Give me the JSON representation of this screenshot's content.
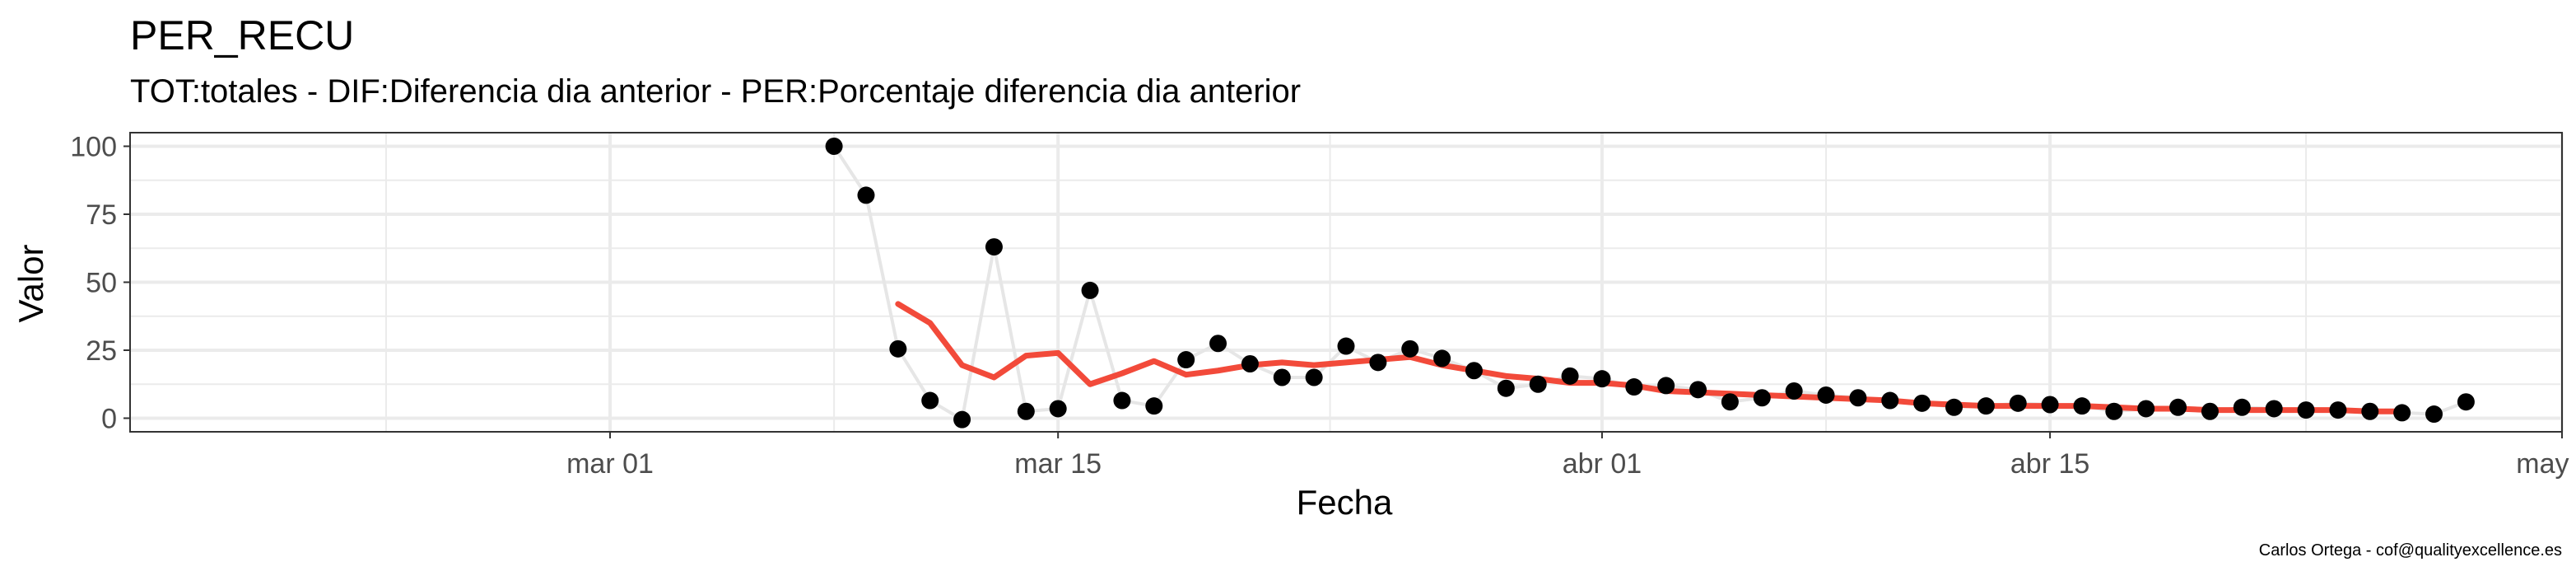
{
  "chart_data": {
    "type": "line",
    "title": "PER_RECU",
    "subtitle": "TOT:totales - DIF:Diferencia dia anterior - PER:Porcentaje diferencia dia anterior",
    "xlabel": "Fecha",
    "ylabel": "Valor",
    "caption": "Carlos Ortega - cof@qualityexcellence.es",
    "x_tick_labels": [
      "mar 01",
      "mar 15",
      "abr 01",
      "abr 15",
      "may 01"
    ],
    "x_tick_dates": [
      "2020-03-01",
      "2020-03-15",
      "2020-04-01",
      "2020-04-15",
      "2020-05-01"
    ],
    "y_tick_labels": [
      "0",
      "25",
      "50",
      "75",
      "100"
    ],
    "y_ticks": [
      0,
      25,
      50,
      75,
      100
    ],
    "xlim": [
      "2020-02-15",
      "2020-05-01"
    ],
    "ylim": [
      -5,
      105
    ],
    "grid": true,
    "colors": {
      "points": "#000000",
      "raw_line": "#e6e6e6",
      "smooth_line": "#f24a3a",
      "grid": "#ebebeb",
      "panel_border": "#333333"
    },
    "series": [
      {
        "kind": "raw",
        "x": [
          "2020-03-08",
          "2020-03-09",
          "2020-03-10",
          "2020-03-11",
          "2020-03-12",
          "2020-03-13",
          "2020-03-14",
          "2020-03-15",
          "2020-03-16",
          "2020-03-17",
          "2020-03-18",
          "2020-03-19",
          "2020-03-20",
          "2020-03-21",
          "2020-03-22",
          "2020-03-23",
          "2020-03-24",
          "2020-03-25",
          "2020-03-26",
          "2020-03-27",
          "2020-03-28",
          "2020-03-29",
          "2020-03-30",
          "2020-03-31",
          "2020-04-01",
          "2020-04-02",
          "2020-04-03",
          "2020-04-04",
          "2020-04-05",
          "2020-04-06",
          "2020-04-07",
          "2020-04-08",
          "2020-04-09",
          "2020-04-10",
          "2020-04-11",
          "2020-04-12",
          "2020-04-13",
          "2020-04-14",
          "2020-04-15",
          "2020-04-16",
          "2020-04-17",
          "2020-04-18",
          "2020-04-19",
          "2020-04-20",
          "2020-04-21",
          "2020-04-22",
          "2020-04-23",
          "2020-04-24",
          "2020-04-25",
          "2020-04-26",
          "2020-04-27",
          "2020-04-28"
        ],
        "y": [
          100,
          82,
          25.5,
          6.5,
          -0.5,
          63,
          2.5,
          3.5,
          47,
          6.5,
          4.5,
          21.5,
          27.5,
          20,
          15,
          15,
          26.5,
          20.5,
          25.5,
          22,
          17.5,
          11,
          12.5,
          15.5,
          14.5,
          11.5,
          12,
          10.5,
          6,
          7.5,
          10,
          8.5,
          7.5,
          6.5,
          5.5,
          4,
          4.5,
          5.5,
          5,
          4.5,
          2.5,
          3.5,
          4,
          2.5,
          4,
          3.5,
          3,
          3,
          2.5,
          2,
          1.5,
          6
        ]
      },
      {
        "kind": "smoothed",
        "x": [
          "2020-03-10",
          "2020-03-11",
          "2020-03-12",
          "2020-03-13",
          "2020-03-14",
          "2020-03-15",
          "2020-03-16",
          "2020-03-17",
          "2020-03-18",
          "2020-03-19",
          "2020-03-20",
          "2020-03-21",
          "2020-03-22",
          "2020-03-23",
          "2020-03-24",
          "2020-03-25",
          "2020-03-26",
          "2020-03-27",
          "2020-03-28",
          "2020-03-29",
          "2020-03-30",
          "2020-03-31",
          "2020-04-01",
          "2020-04-02",
          "2020-04-03",
          "2020-04-04",
          "2020-04-05",
          "2020-04-06",
          "2020-04-07",
          "2020-04-08",
          "2020-04-09",
          "2020-04-10",
          "2020-04-11",
          "2020-04-12",
          "2020-04-13",
          "2020-04-14",
          "2020-04-15",
          "2020-04-16",
          "2020-04-17",
          "2020-04-18",
          "2020-04-19",
          "2020-04-20",
          "2020-04-21",
          "2020-04-22",
          "2020-04-23",
          "2020-04-24",
          "2020-04-25",
          "2020-04-26"
        ],
        "y": [
          42,
          35,
          19.5,
          15,
          23,
          24,
          12.5,
          16.5,
          21,
          16,
          17.5,
          19.5,
          20.5,
          19.5,
          20.5,
          21.5,
          22.5,
          19.5,
          17.5,
          15.5,
          14.5,
          13,
          13,
          12,
          10,
          9.5,
          9,
          8.5,
          8,
          7.5,
          7,
          6.5,
          5.5,
          5,
          4.5,
          4.5,
          4.5,
          4.5,
          4,
          3.5,
          3.5,
          3,
          3,
          3,
          3,
          3,
          2.5,
          2.5
        ]
      }
    ]
  }
}
